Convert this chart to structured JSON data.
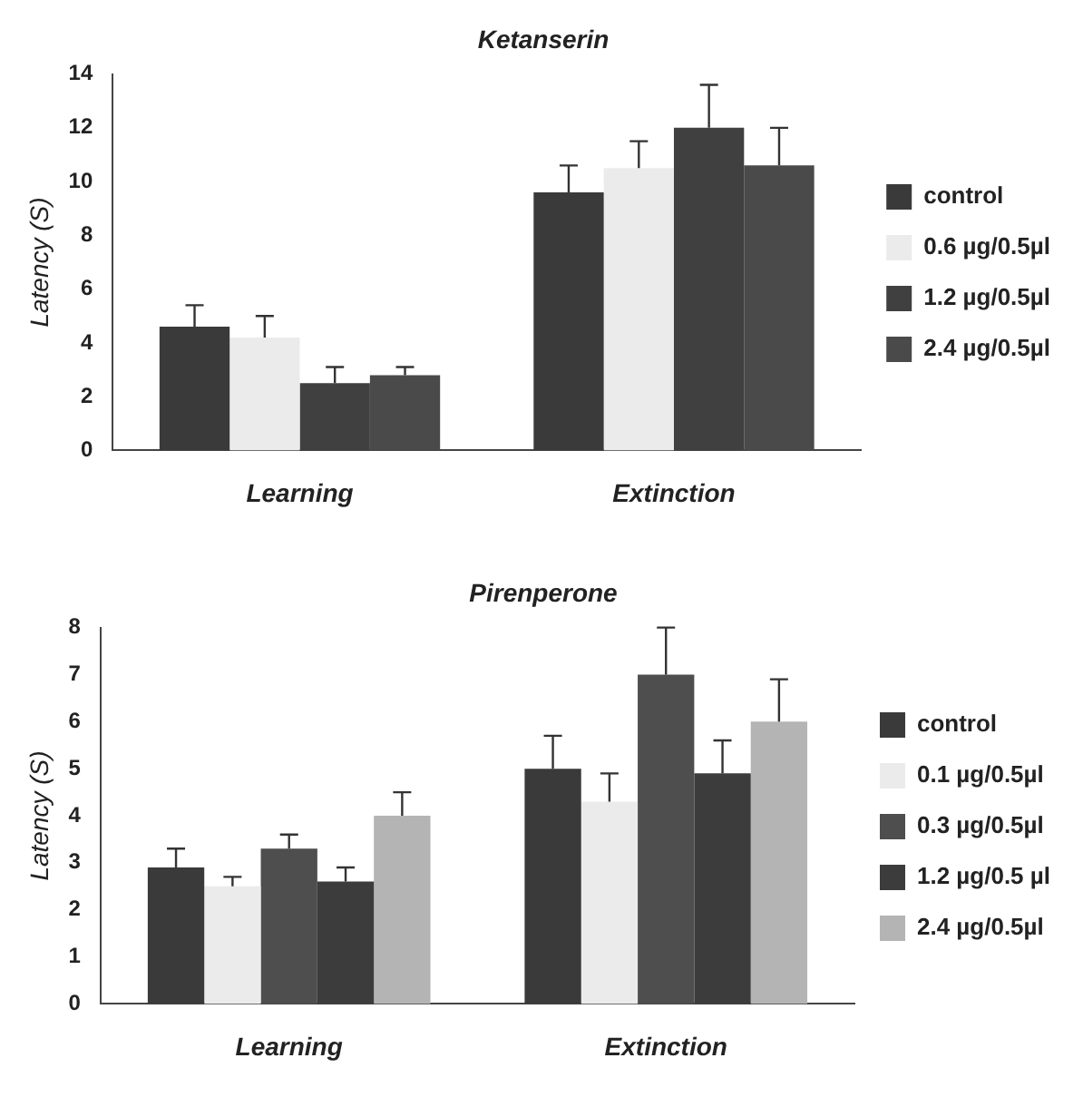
{
  "chart_data": [
    {
      "type": "bar",
      "title": "Ketanserin",
      "ylabel": "Latency (S)",
      "categories": [
        "Learning",
        "Extinction"
      ],
      "ylim": [
        0,
        14
      ],
      "yticks": [
        0,
        2,
        4,
        6,
        8,
        10,
        12,
        14
      ],
      "grid": false,
      "legend": "right",
      "series": [
        {
          "name": "control",
          "color": "#3a3a3a",
          "values": [
            4.6,
            9.6
          ],
          "errors": [
            [
              4.6,
              5.4
            ],
            [
              9.6,
              10.6
            ]
          ]
        },
        {
          "name": "0.6 µg/0.5µl",
          "color": "#ebebeb",
          "values": [
            4.2,
            10.5
          ],
          "errors": [
            [
              4.2,
              5.0
            ],
            [
              10.5,
              11.5
            ]
          ]
        },
        {
          "name": "1.2 µg/0.5µl",
          "color": "#404040",
          "values": [
            2.5,
            12.0
          ],
          "errors": [
            [
              2.5,
              3.1
            ],
            [
              12.0,
              13.6
            ]
          ]
        },
        {
          "name": "2.4 µg/0.5µl",
          "color": "#4a4a4a",
          "values": [
            2.8,
            10.6
          ],
          "errors": [
            [
              2.8,
              3.1
            ],
            [
              10.6,
              12.0
            ]
          ]
        }
      ]
    },
    {
      "type": "bar",
      "title": "Pirenperone",
      "ylabel": "Latency (S)",
      "categories": [
        "Learning",
        "Extinction"
      ],
      "ylim": [
        0,
        8
      ],
      "yticks": [
        0,
        1,
        2,
        3,
        4,
        5,
        6,
        7,
        8
      ],
      "grid": false,
      "legend": "right",
      "series": [
        {
          "name": "control",
          "color": "#3a3a3a",
          "values": [
            2.9,
            5.0
          ],
          "errors": [
            [
              2.9,
              3.3
            ],
            [
              5.0,
              5.7
            ]
          ]
        },
        {
          "name": "0.1 µg/0.5µl",
          "color": "#ebebeb",
          "values": [
            2.5,
            4.3
          ],
          "errors": [
            [
              2.5,
              2.7
            ],
            [
              4.3,
              4.9
            ]
          ]
        },
        {
          "name": "0.3 µg/0.5µl",
          "color": "#4e4e4e",
          "values": [
            3.3,
            7.0
          ],
          "errors": [
            [
              3.3,
              3.6
            ],
            [
              7.0,
              8.0
            ]
          ]
        },
        {
          "name": "1.2 µg/0.5 µl",
          "color": "#3c3c3c",
          "values": [
            2.6,
            4.9
          ],
          "errors": [
            [
              2.6,
              2.9
            ],
            [
              4.9,
              5.6
            ]
          ]
        },
        {
          "name": "2.4 µg/0.5µl",
          "color": "#b4b4b4",
          "values": [
            4.0,
            6.0
          ],
          "errors": [
            [
              4.0,
              4.5
            ],
            [
              6.0,
              6.9
            ]
          ]
        }
      ]
    }
  ]
}
